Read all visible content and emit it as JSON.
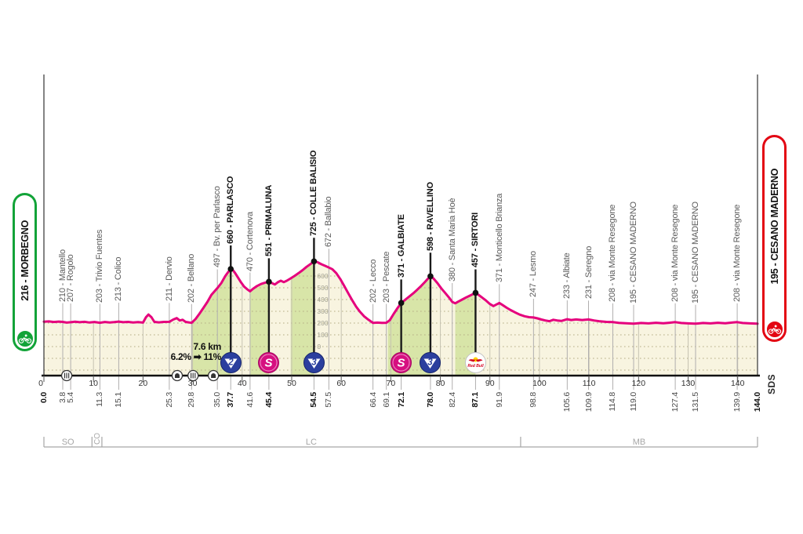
{
  "stage": {
    "start_badge": {
      "label": "216 - MORBEGNO",
      "color": "#12a338"
    },
    "finish_badge": {
      "label": "195 - CESANO MADERNO",
      "color": "#e30613"
    },
    "signature": "SDS",
    "climb_annotation": {
      "line1": "7.6 km",
      "line2": "6.2% ➡ 11%"
    }
  },
  "colors": {
    "profile_pink": "#e5007d",
    "area_cream": "#f8f4e0",
    "climb_green": "#d8e5a8",
    "grid_dots": "#b5ad85",
    "vgrid": "#c6c3b2",
    "waypoint_line": "#b0aeae",
    "bold_line": "#1a1a1a",
    "axis": "#111111",
    "climb_blue": "#2b3f9e",
    "sprint_pink": "#d60f80",
    "redbull_red": "#d4001e",
    "redbull_yellow": "#ffd300",
    "province": "#a6a6a6"
  },
  "chart_data": {
    "type": "area",
    "x_unit": "km",
    "y_unit": "m",
    "xlim": [
      0,
      144
    ],
    "x_major_ticks": [
      0,
      10,
      20,
      30,
      40,
      50,
      60,
      70,
      80,
      90,
      100,
      110,
      120,
      130,
      140
    ],
    "elevation_scale": {
      "at_km": 54.5,
      "values": [
        600,
        500,
        400,
        300,
        200,
        100,
        0
      ]
    },
    "waypoints": [
      {
        "km": 3.8,
        "elev": 210,
        "label": "210 - Mantello"
      },
      {
        "km": 5.4,
        "elev": 207,
        "label": "207 - Rogolo"
      },
      {
        "km": 11.3,
        "elev": 203,
        "label": "203 - Trivio Fuentes"
      },
      {
        "km": 15.1,
        "elev": 213,
        "label": "213 - Colico"
      },
      {
        "km": 25.3,
        "elev": 211,
        "label": "211 - Dervio"
      },
      {
        "km": 29.8,
        "elev": 202,
        "label": "202 - Bellano"
      },
      {
        "km": 35.0,
        "elev": 497,
        "label": "497 - Bv. per Parlasco"
      },
      {
        "km": 37.7,
        "elev": 660,
        "label": "660 - PARLASCO",
        "bold": true,
        "marker": "climb2"
      },
      {
        "km": 41.6,
        "elev": 470,
        "label": "470 - Cortenova"
      },
      {
        "km": 45.4,
        "elev": 551,
        "label": "551 - PRIMALUNA",
        "bold": true,
        "marker": "sprint"
      },
      {
        "km": 54.5,
        "elev": 725,
        "label": "725 - COLLE BALISIO",
        "bold": true,
        "marker": "climb3"
      },
      {
        "km": 57.5,
        "elev": 672,
        "label": "672 - Ballabio"
      },
      {
        "km": 66.4,
        "elev": 202,
        "label": "202 - Lecco"
      },
      {
        "km": 69.1,
        "elev": 203,
        "label": "203 - Pescate"
      },
      {
        "km": 72.1,
        "elev": 371,
        "label": "371 - GALBIATE",
        "bold": true,
        "marker": "sprint"
      },
      {
        "km": 78.0,
        "elev": 598,
        "label": "598 - RAVELLINO",
        "bold": true,
        "marker": "climb3"
      },
      {
        "km": 82.4,
        "elev": 380,
        "label": "380 - Santa Maria Hoè"
      },
      {
        "km": 87.1,
        "elev": 457,
        "label": "457 - SIRTORI",
        "bold": true,
        "marker": "redbull"
      },
      {
        "km": 91.9,
        "elev": 371,
        "label": "371 - Monticello Brianza"
      },
      {
        "km": 98.8,
        "elev": 247,
        "label": "247 - Lesmo"
      },
      {
        "km": 105.6,
        "elev": 233,
        "label": "233 - Albiate"
      },
      {
        "km": 109.9,
        "elev": 231,
        "label": "231 - Seregno"
      },
      {
        "km": 114.8,
        "elev": 208,
        "label": "208 - via Monte Resegone"
      },
      {
        "km": 119.0,
        "elev": 195,
        "label": "195 - CESANO MADERNO"
      },
      {
        "km": 127.4,
        "elev": 208,
        "label": "208 - via Monte Resegone"
      },
      {
        "km": 131.5,
        "elev": 195,
        "label": "195 - CESANO MADERNO"
      },
      {
        "km": 139.9,
        "elev": 208,
        "label": "208 - via Monte Resegone"
      }
    ],
    "km_labels": [
      {
        "text": "0.0",
        "km": 0.0,
        "bold": true
      },
      {
        "text": "3.8",
        "km": 3.8
      },
      {
        "text": "5.4",
        "km": 5.4
      },
      {
        "text": "11.3",
        "km": 11.3
      },
      {
        "text": "15.1",
        "km": 15.1
      },
      {
        "text": "25.3",
        "km": 25.3
      },
      {
        "text": "29.8",
        "km": 29.8
      },
      {
        "text": "35.0",
        "km": 35.0
      },
      {
        "text": "37.7",
        "km": 37.7,
        "bold": true
      },
      {
        "text": "41.6",
        "km": 41.6
      },
      {
        "text": "45.4",
        "km": 45.4,
        "bold": true
      },
      {
        "text": "54.5",
        "km": 54.5,
        "bold": true
      },
      {
        "text": "57.5",
        "km": 57.5
      },
      {
        "text": "66.4",
        "km": 66.4
      },
      {
        "text": "69.1",
        "km": 69.1
      },
      {
        "text": "72.1",
        "km": 72.1,
        "bold": true
      },
      {
        "text": "78.0",
        "km": 78.0,
        "bold": true
      },
      {
        "text": "82.4",
        "km": 82.4
      },
      {
        "text": "87.1",
        "km": 87.1,
        "bold": true
      },
      {
        "text": "91.9",
        "km": 91.9
      },
      {
        "text": "98.8",
        "km": 98.8
      },
      {
        "text": "105.6",
        "km": 105.6
      },
      {
        "text": "109.9",
        "km": 109.9
      },
      {
        "text": "114.8",
        "km": 114.8
      },
      {
        "text": "119.0",
        "km": 119.0
      },
      {
        "text": "127.4",
        "km": 127.4
      },
      {
        "text": "131.5",
        "km": 131.5
      },
      {
        "text": "139.9",
        "km": 139.9
      },
      {
        "text": "144.0",
        "km": 144.0,
        "bold": true
      }
    ],
    "markers": [
      {
        "km": 37.7,
        "type": "climb",
        "category": "2"
      },
      {
        "km": 45.4,
        "type": "sprint",
        "glyph": "S"
      },
      {
        "km": 54.5,
        "type": "climb",
        "category": "3"
      },
      {
        "km": 72.1,
        "type": "sprint",
        "glyph": "S"
      },
      {
        "km": 78.0,
        "type": "climb",
        "category": "3"
      },
      {
        "km": 87.1,
        "type": "redbull",
        "label": "Red Bull"
      }
    ],
    "climb_segments": [
      [
        29.8,
        37.7
      ],
      [
        41.6,
        45.4
      ],
      [
        49.8,
        54.5
      ],
      [
        69.4,
        78.0
      ],
      [
        83.0,
        87.1
      ]
    ],
    "axis_icons": [
      {
        "km": 4.6,
        "type": "crossing"
      },
      {
        "km": 26.9,
        "type": "tunnel"
      },
      {
        "km": 30.1,
        "type": "crossing"
      },
      {
        "km": 34.2,
        "type": "tunnel"
      }
    ],
    "provinces": [
      {
        "label": "SO",
        "from_km": 0,
        "to_km": 9.7
      },
      {
        "label": "CO",
        "from_km": 9.7,
        "to_km": 11.7,
        "rotated": true
      },
      {
        "label": "LC",
        "from_km": 11.7,
        "to_km": 96.2
      },
      {
        "label": "MB",
        "from_km": 96.2,
        "to_km": 144
      }
    ],
    "profile": [
      [
        0,
        212
      ],
      [
        1,
        214
      ],
      [
        2,
        209
      ],
      [
        3,
        213
      ],
      [
        3.8,
        210
      ],
      [
        4.6,
        204
      ],
      [
        5.4,
        207
      ],
      [
        6.3,
        212
      ],
      [
        7.2,
        207
      ],
      [
        8.2,
        211
      ],
      [
        9.2,
        205
      ],
      [
        10.2,
        209
      ],
      [
        11.3,
        203
      ],
      [
        12.3,
        209
      ],
      [
        13.3,
        205
      ],
      [
        14.2,
        208
      ],
      [
        15.1,
        213
      ],
      [
        16,
        207
      ],
      [
        17,
        210
      ],
      [
        18,
        205
      ],
      [
        19,
        208
      ],
      [
        20,
        204
      ],
      [
        20.6,
        250
      ],
      [
        21.1,
        273
      ],
      [
        21.7,
        250
      ],
      [
        22.3,
        210
      ],
      [
        23.2,
        206
      ],
      [
        24.2,
        210
      ],
      [
        25.3,
        211
      ],
      [
        26.1,
        230
      ],
      [
        26.8,
        242
      ],
      [
        27.4,
        222
      ],
      [
        28,
        228
      ],
      [
        28.6,
        210
      ],
      [
        29.2,
        206
      ],
      [
        29.8,
        202
      ],
      [
        30.6,
        235
      ],
      [
        31.4,
        280
      ],
      [
        32.2,
        330
      ],
      [
        33,
        380
      ],
      [
        33.8,
        440
      ],
      [
        35,
        497
      ],
      [
        35.8,
        540
      ],
      [
        36.6,
        600
      ],
      [
        37.2,
        635
      ],
      [
        37.7,
        660
      ],
      [
        38.1,
        652
      ],
      [
        38.6,
        625
      ],
      [
        39.2,
        585
      ],
      [
        39.8,
        545
      ],
      [
        40.4,
        510
      ],
      [
        41,
        488
      ],
      [
        41.6,
        470
      ],
      [
        42.2,
        492
      ],
      [
        43,
        515
      ],
      [
        43.8,
        532
      ],
      [
        44.6,
        543
      ],
      [
        45.4,
        551
      ],
      [
        46,
        540
      ],
      [
        46.6,
        528
      ],
      [
        47.2,
        547
      ],
      [
        47.8,
        560
      ],
      [
        48.4,
        548
      ],
      [
        49,
        560
      ],
      [
        49.8,
        580
      ],
      [
        50.6,
        602
      ],
      [
        51.4,
        625
      ],
      [
        52.2,
        650
      ],
      [
        53,
        678
      ],
      [
        53.8,
        702
      ],
      [
        54.5,
        725
      ],
      [
        55.2,
        718
      ],
      [
        56,
        700
      ],
      [
        56.8,
        686
      ],
      [
        57.5,
        672
      ],
      [
        58.2,
        658
      ],
      [
        59,
        625
      ],
      [
        59.8,
        575
      ],
      [
        60.6,
        515
      ],
      [
        61.4,
        455
      ],
      [
        62.2,
        395
      ],
      [
        63,
        340
      ],
      [
        63.8,
        295
      ],
      [
        64.6,
        258
      ],
      [
        65.5,
        228
      ],
      [
        66.4,
        202
      ],
      [
        67.3,
        204
      ],
      [
        68.2,
        202
      ],
      [
        69.1,
        203
      ],
      [
        69.8,
        225
      ],
      [
        70.6,
        280
      ],
      [
        71.4,
        330
      ],
      [
        72.1,
        371
      ],
      [
        72.9,
        398
      ],
      [
        73.7,
        425
      ],
      [
        74.5,
        452
      ],
      [
        75.3,
        483
      ],
      [
        76.1,
        515
      ],
      [
        76.9,
        550
      ],
      [
        77.5,
        578
      ],
      [
        78,
        598
      ],
      [
        78.6,
        580
      ],
      [
        79.4,
        540
      ],
      [
        80.2,
        495
      ],
      [
        81,
        455
      ],
      [
        81.8,
        415
      ],
      [
        82.4,
        380
      ],
      [
        83,
        368
      ],
      [
        83.6,
        382
      ],
      [
        84.4,
        400
      ],
      [
        85.2,
        418
      ],
      [
        86,
        434
      ],
      [
        86.6,
        447
      ],
      [
        87.1,
        457
      ],
      [
        87.7,
        440
      ],
      [
        88.4,
        418
      ],
      [
        89.2,
        392
      ],
      [
        90,
        362
      ],
      [
        90.7,
        345
      ],
      [
        91.3,
        358
      ],
      [
        91.9,
        371
      ],
      [
        92.6,
        352
      ],
      [
        93.4,
        330
      ],
      [
        94.2,
        310
      ],
      [
        95,
        293
      ],
      [
        96,
        272
      ],
      [
        97,
        258
      ],
      [
        97.9,
        250
      ],
      [
        98.8,
        247
      ],
      [
        99.6,
        240
      ],
      [
        100.4,
        230
      ],
      [
        101.2,
        222
      ],
      [
        102,
        216
      ],
      [
        102.8,
        228
      ],
      [
        103.6,
        222
      ],
      [
        104.4,
        218
      ],
      [
        105.6,
        233
      ],
      [
        106.4,
        226
      ],
      [
        107.4,
        231
      ],
      [
        108.6,
        226
      ],
      [
        109.9,
        231
      ],
      [
        111,
        222
      ],
      [
        112,
        216
      ],
      [
        113.5,
        210
      ],
      [
        114.8,
        208
      ],
      [
        116,
        202
      ],
      [
        117.5,
        198
      ],
      [
        119,
        195
      ],
      [
        120.5,
        201
      ],
      [
        122,
        197
      ],
      [
        123.5,
        203
      ],
      [
        125,
        198
      ],
      [
        126.2,
        203
      ],
      [
        127.4,
        208
      ],
      [
        128.6,
        201
      ],
      [
        130,
        197
      ],
      [
        131.5,
        195
      ],
      [
        133,
        201
      ],
      [
        134.5,
        197
      ],
      [
        136,
        203
      ],
      [
        137.5,
        198
      ],
      [
        139,
        205
      ],
      [
        139.9,
        208
      ],
      [
        141,
        201
      ],
      [
        142.5,
        197
      ],
      [
        144,
        195
      ]
    ]
  }
}
